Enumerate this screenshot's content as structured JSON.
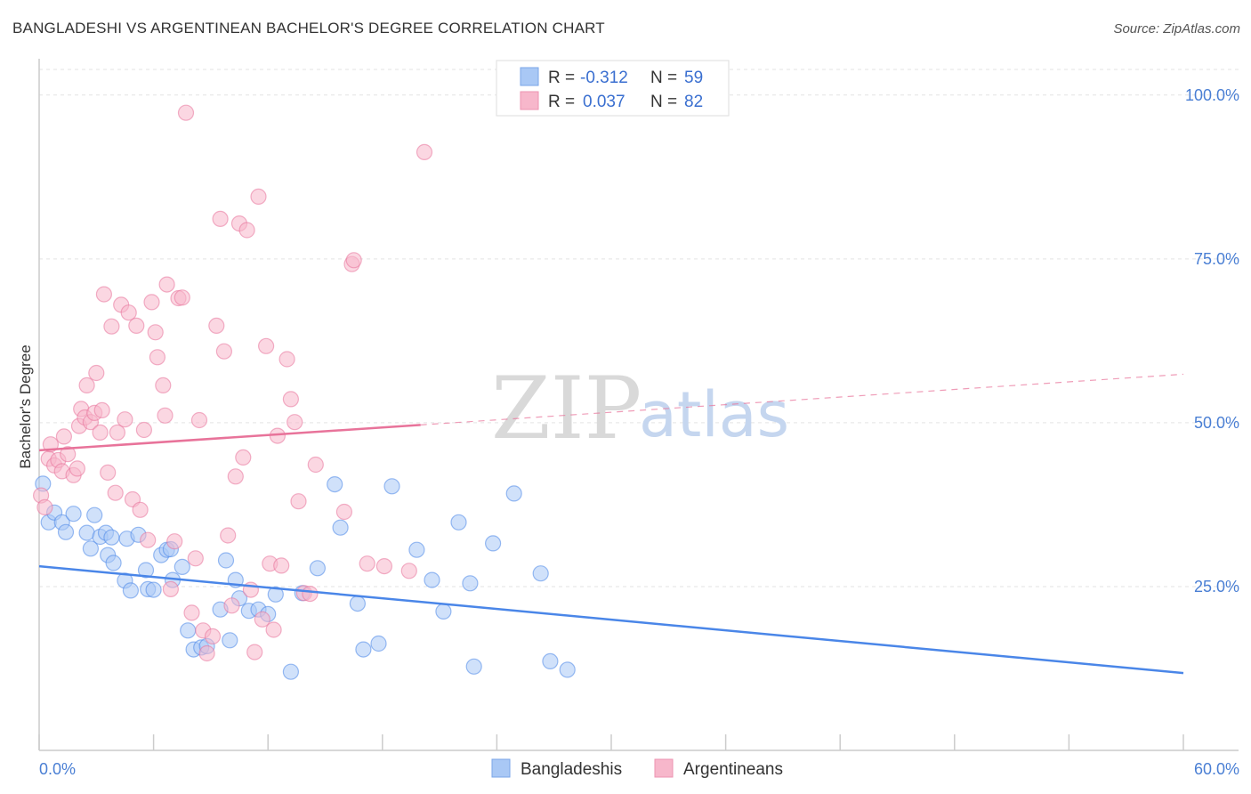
{
  "header": {
    "title": "BANGLADESHI VS ARGENTINEAN BACHELOR'S DEGREE CORRELATION CHART",
    "source": "Source: ZipAtlas.com"
  },
  "watermark": {
    "zip": "ZIP",
    "atlas": "atlas"
  },
  "stats_legend": {
    "r_label": "R =",
    "n_label": "N =",
    "rows": [
      {
        "series": "Bangladeshis",
        "r": "-0.312",
        "n": "59",
        "color": "#a9c8f5"
      },
      {
        "series": "Argentineans",
        "r": "0.037",
        "n": "82",
        "color": "#f7b7cb"
      }
    ]
  },
  "chart_data": {
    "type": "scatter",
    "title": "BANGLADESHI VS ARGENTINEAN BACHELOR'S DEGREE CORRELATION CHART",
    "xlabel": "",
    "ylabel": "Bachelor's Degree",
    "xlim": [
      0,
      60
    ],
    "ylim": [
      0,
      105
    ],
    "x_tick_labels": [
      "0.0%",
      "60.0%"
    ],
    "y_ticks": [
      25,
      50,
      75,
      100
    ],
    "y_tick_labels": [
      "25.0%",
      "50.0%",
      "75.0%",
      "100.0%"
    ],
    "grid": true,
    "legend_position": "bottom-center",
    "series": [
      {
        "name": "Bangladeshis",
        "color": "#4a86e8",
        "fill": "#a9c8f5",
        "trend": {
          "x": [
            0,
            60
          ],
          "y": [
            28.1,
            11.8
          ],
          "style": "solid"
        },
        "points": [
          [
            0.2,
            40.7
          ],
          [
            0.5,
            34.8
          ],
          [
            0.8,
            36.3
          ],
          [
            1.2,
            34.8
          ],
          [
            1.4,
            33.3
          ],
          [
            1.8,
            36.1
          ],
          [
            2.5,
            33.2
          ],
          [
            2.7,
            30.8
          ],
          [
            2.9,
            35.9
          ],
          [
            3.2,
            32.6
          ],
          [
            3.5,
            33.2
          ],
          [
            3.6,
            29.8
          ],
          [
            3.8,
            32.5
          ],
          [
            3.9,
            28.6
          ],
          [
            4.5,
            25.9
          ],
          [
            4.6,
            32.3
          ],
          [
            4.8,
            24.4
          ],
          [
            5.2,
            32.9
          ],
          [
            5.6,
            27.5
          ],
          [
            5.7,
            24.6
          ],
          [
            6.0,
            24.5
          ],
          [
            6.4,
            29.8
          ],
          [
            6.7,
            30.6
          ],
          [
            6.9,
            30.7
          ],
          [
            7.0,
            26.0
          ],
          [
            7.5,
            28.0
          ],
          [
            7.8,
            18.3
          ],
          [
            8.1,
            15.4
          ],
          [
            8.5,
            15.7
          ],
          [
            8.8,
            15.9
          ],
          [
            9.5,
            21.5
          ],
          [
            9.8,
            29.0
          ],
          [
            10.0,
            16.8
          ],
          [
            10.3,
            26.0
          ],
          [
            10.5,
            23.2
          ],
          [
            11.0,
            21.3
          ],
          [
            11.5,
            21.5
          ],
          [
            12.0,
            20.8
          ],
          [
            12.4,
            23.8
          ],
          [
            13.2,
            12.0
          ],
          [
            13.8,
            24.0
          ],
          [
            14.6,
            27.8
          ],
          [
            15.5,
            40.6
          ],
          [
            15.8,
            34.0
          ],
          [
            16.7,
            22.4
          ],
          [
            17.0,
            15.4
          ],
          [
            17.8,
            16.3
          ],
          [
            18.5,
            40.3
          ],
          [
            19.8,
            30.6
          ],
          [
            20.6,
            26.0
          ],
          [
            21.2,
            21.2
          ],
          [
            22.0,
            34.8
          ],
          [
            22.6,
            25.5
          ],
          [
            22.8,
            12.8
          ],
          [
            23.8,
            31.6
          ],
          [
            24.9,
            39.2
          ],
          [
            26.3,
            27.0
          ],
          [
            26.8,
            13.6
          ],
          [
            27.7,
            12.3
          ]
        ]
      },
      {
        "name": "Argentineans",
        "color": "#e8739a",
        "fill": "#f7b7cb",
        "trend": {
          "x": [
            0,
            60
          ],
          "y": [
            45.8,
            57.4
          ],
          "solid_until": 20
        },
        "points": [
          [
            0.1,
            38.9
          ],
          [
            0.3,
            37.1
          ],
          [
            0.5,
            44.5
          ],
          [
            0.6,
            46.7
          ],
          [
            0.8,
            43.5
          ],
          [
            1.0,
            44.3
          ],
          [
            1.2,
            42.6
          ],
          [
            1.3,
            47.9
          ],
          [
            1.5,
            45.2
          ],
          [
            1.8,
            42.0
          ],
          [
            2.0,
            43.0
          ],
          [
            2.1,
            49.5
          ],
          [
            2.2,
            52.1
          ],
          [
            2.4,
            50.8
          ],
          [
            2.5,
            55.7
          ],
          [
            2.7,
            50.1
          ],
          [
            2.9,
            51.5
          ],
          [
            3.0,
            57.6
          ],
          [
            3.2,
            48.5
          ],
          [
            3.3,
            51.9
          ],
          [
            3.4,
            69.6
          ],
          [
            3.6,
            42.4
          ],
          [
            3.8,
            64.7
          ],
          [
            4.0,
            39.3
          ],
          [
            4.1,
            48.5
          ],
          [
            4.3,
            68.0
          ],
          [
            4.5,
            50.5
          ],
          [
            4.7,
            66.8
          ],
          [
            4.9,
            38.3
          ],
          [
            5.1,
            64.8
          ],
          [
            5.3,
            36.7
          ],
          [
            5.5,
            48.9
          ],
          [
            5.7,
            32.1
          ],
          [
            5.9,
            68.4
          ],
          [
            6.1,
            63.8
          ],
          [
            6.2,
            60.0
          ],
          [
            6.5,
            55.7
          ],
          [
            6.6,
            51.1
          ],
          [
            6.7,
            71.1
          ],
          [
            6.9,
            24.6
          ],
          [
            7.1,
            31.9
          ],
          [
            7.3,
            69.0
          ],
          [
            7.5,
            69.1
          ],
          [
            7.7,
            97.3
          ],
          [
            8.0,
            21.0
          ],
          [
            8.2,
            29.3
          ],
          [
            8.4,
            50.4
          ],
          [
            8.6,
            18.3
          ],
          [
            8.8,
            14.8
          ],
          [
            9.1,
            17.4
          ],
          [
            9.3,
            64.8
          ],
          [
            9.5,
            81.1
          ],
          [
            9.7,
            60.9
          ],
          [
            9.9,
            32.8
          ],
          [
            10.1,
            22.1
          ],
          [
            10.3,
            41.8
          ],
          [
            10.5,
            80.4
          ],
          [
            10.7,
            44.7
          ],
          [
            10.9,
            79.4
          ],
          [
            11.1,
            24.5
          ],
          [
            11.3,
            15.0
          ],
          [
            11.5,
            84.5
          ],
          [
            11.7,
            20.0
          ],
          [
            11.9,
            61.7
          ],
          [
            12.1,
            28.5
          ],
          [
            12.3,
            18.4
          ],
          [
            12.5,
            48.0
          ],
          [
            12.7,
            28.2
          ],
          [
            13.0,
            59.7
          ],
          [
            13.2,
            53.6
          ],
          [
            13.4,
            50.1
          ],
          [
            13.6,
            38.0
          ],
          [
            13.9,
            24.0
          ],
          [
            14.2,
            23.9
          ],
          [
            14.5,
            43.6
          ],
          [
            16.0,
            36.4
          ],
          [
            16.4,
            74.2
          ],
          [
            16.5,
            74.8
          ],
          [
            17.2,
            28.5
          ],
          [
            18.1,
            28.1
          ],
          [
            19.4,
            27.4
          ],
          [
            20.2,
            91.3
          ]
        ]
      }
    ]
  },
  "bottom_legend": {
    "items": [
      {
        "label": "Bangladeshis",
        "color": "#a9c8f5"
      },
      {
        "label": "Argentineans",
        "color": "#f7b7cb"
      }
    ]
  }
}
